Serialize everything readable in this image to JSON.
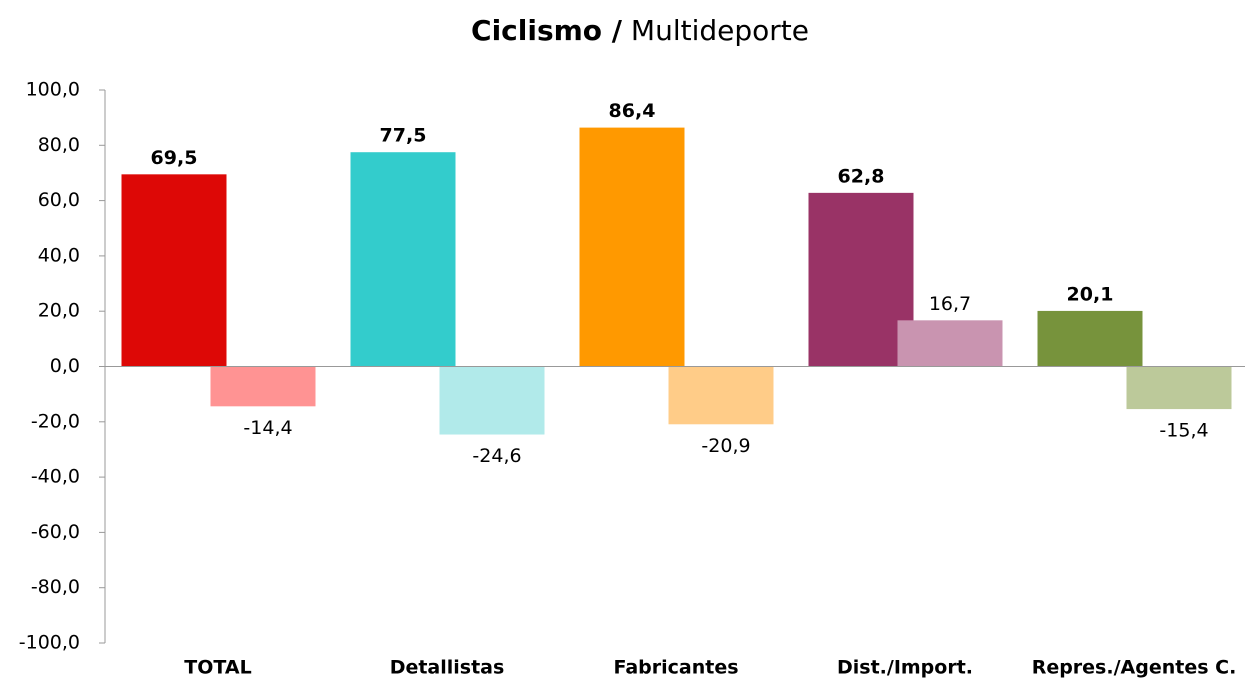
{
  "chart_data": {
    "type": "bar",
    "title": {
      "bold": "Ciclismo /",
      "regular": "Multideporte"
    },
    "categories": [
      "TOTAL",
      "Detallistas",
      "Fabricantes",
      "Dist./Import.",
      "Repres./Agentes C."
    ],
    "series": [
      {
        "colors": [
          "#dd0806",
          "#33cccc",
          "#ff9900",
          "#993366",
          "#77933c"
        ],
        "values": [
          69.5,
          77.5,
          86.4,
          62.8,
          20.1
        ],
        "value_labels": [
          "69,5",
          "77,5",
          "86,4",
          "62,8",
          "20,1"
        ]
      },
      {
        "colors": [
          "#ff9393",
          "#b1eaea",
          "#ffcc88",
          "#c994b0",
          "#bcc99a"
        ],
        "values": [
          -14.4,
          -24.6,
          -20.9,
          16.7,
          -15.4
        ],
        "value_labels": [
          "-14,4",
          "-24,6",
          "-20,9",
          "16,7",
          "-15,4"
        ]
      }
    ],
    "ylim": [
      -100,
      100
    ],
    "yticks": [
      {
        "value": -100,
        "label": "-100,0"
      },
      {
        "value": -80,
        "label": "-80,0"
      },
      {
        "value": -60,
        "label": "-60,0"
      },
      {
        "value": -40,
        "label": "-40,0"
      },
      {
        "value": -20,
        "label": "-20,0"
      },
      {
        "value": 0,
        "label": "0,0"
      },
      {
        "value": 20,
        "label": "20,0"
      },
      {
        "value": 40,
        "label": "40,0"
      },
      {
        "value": 60,
        "label": "60,0"
      },
      {
        "value": 80,
        "label": "80,0"
      },
      {
        "value": 100,
        "label": "100,0"
      }
    ],
    "grid": false
  }
}
